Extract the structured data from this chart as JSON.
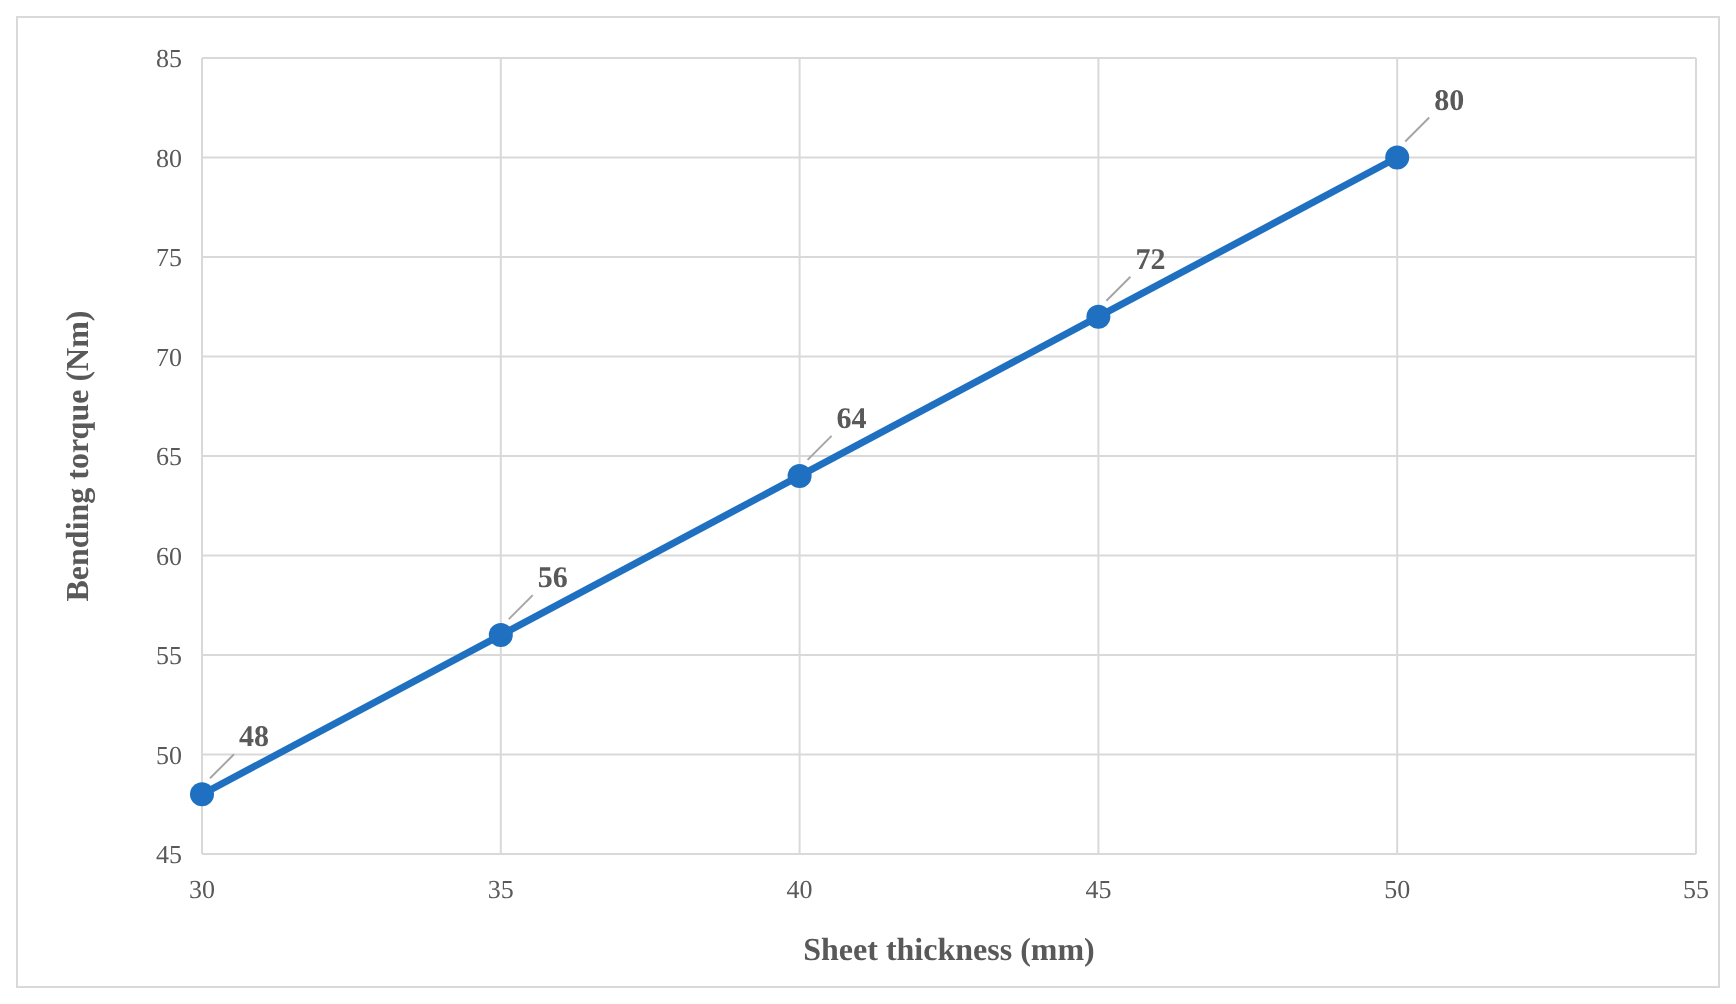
{
  "chart_data": {
    "type": "line",
    "xlabel": "Sheet thickness (mm)",
    "ylabel": "Bending torque (Nm)",
    "x": [
      30,
      35,
      40,
      45,
      50
    ],
    "series": [
      {
        "color": "#1f70c1",
        "values": [
          48,
          56,
          64,
          72,
          80
        ]
      }
    ],
    "xlim": [
      30,
      55
    ],
    "xticks": [
      30,
      35,
      40,
      45,
      50,
      55
    ],
    "ylim": [
      45,
      85
    ],
    "yticks": [
      45,
      50,
      55,
      60,
      65,
      70,
      75,
      80,
      85
    ],
    "grid": true,
    "marker": "circle",
    "line_style": "solid",
    "data_labels": true
  }
}
